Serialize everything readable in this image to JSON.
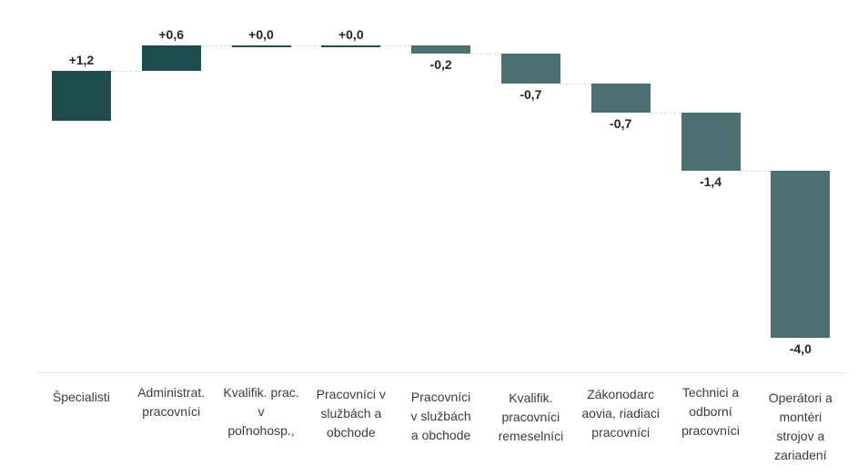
{
  "chart_data": {
    "type": "waterfall",
    "title": "",
    "categories": [
      "Špecialisti",
      "Administrat. pracovníci",
      "Kvalifik. prac. v poľnohosp.,",
      "Pracovníci v službách a obchode",
      "Pracovníci v službách a obchode",
      "Kvalifik. pracovníci remeselníci",
      "Zákonodarc aovia, riadiaci pracovníci",
      "Technici a odborní pracovníci",
      "Operátori a montéri strojov a zariadení"
    ],
    "category_lines": [
      [
        "Špecialisti"
      ],
      [
        "Administrat.",
        "pracovníci"
      ],
      [
        "Kvalifik. prac.",
        "v",
        "poľnohosp.,"
      ],
      [
        "Pracovníci v",
        "službách a",
        "obchode"
      ],
      [
        "Pracovníci",
        "v službách",
        "a obchode"
      ],
      [
        "Kvalifik.",
        "pracovníci",
        "remeselníci"
      ],
      [
        "Zákonodarc",
        "aovia, riadiaci",
        "pracovníci"
      ],
      [
        "Technici a",
        "odborní",
        "pracovníci"
      ],
      [
        "Operátori a",
        "montéri",
        "strojov a",
        "zariadení"
      ]
    ],
    "values": [
      1.2,
      0.6,
      0.0,
      0.0,
      -0.2,
      -0.7,
      -0.7,
      -1.4,
      -4.0
    ],
    "value_labels": [
      "+1,2",
      "+0,6",
      "+0,0",
      "+0,0",
      "-0,2",
      "-0,7",
      "-0,7",
      "-1,4",
      "-4,0"
    ],
    "cumulative_start": 0,
    "ylim": [
      -5.2,
      1.8
    ],
    "xlabel": "",
    "ylabel": "",
    "grid": false,
    "legend": null,
    "colors": {
      "increase": "#1d4b4e",
      "decrease": "#4a7072",
      "connector": "#d9d9d9",
      "axis_line": "#cfcfcf",
      "value_label": "#262626",
      "category_label": "#3b3b3b",
      "background": "#ffffff"
    }
  }
}
